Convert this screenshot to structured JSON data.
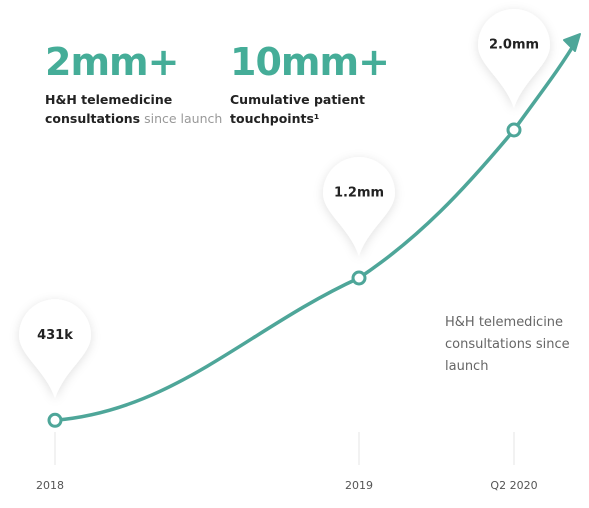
{
  "chart_data": {
    "type": "line",
    "stats": [
      {
        "value": "2mm+",
        "label_bold": "H&H telemedicine consultations",
        "label_rest": "since launch"
      },
      {
        "value": "10mm+",
        "label_bold": "Cumulative patient touchpoints¹"
      }
    ],
    "categories": [
      "2018",
      "2019",
      "Q2 2020"
    ],
    "values": [
      431000,
      1200000,
      2000000
    ],
    "value_labels": [
      "431k",
      "1.2mm",
      "2.0mm"
    ],
    "color": "#4ea699",
    "note": "H&H telemedicine consultations since launch"
  }
}
